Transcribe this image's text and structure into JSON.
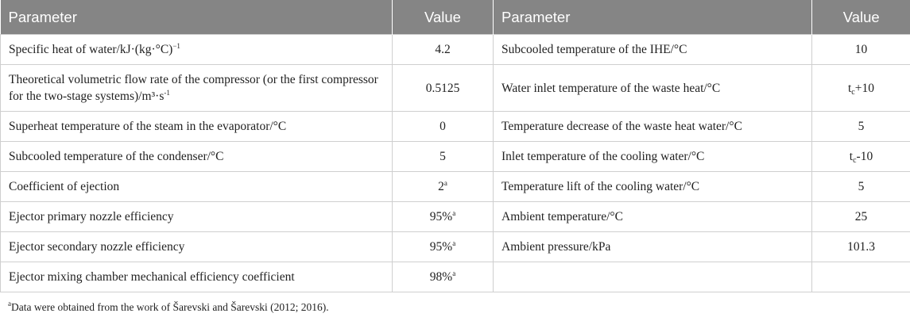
{
  "table": {
    "headers": [
      "Parameter",
      "Value",
      "Parameter",
      "Value"
    ],
    "rows": [
      {
        "p1": "Specific heat of water/kJ·(kg·°C)",
        "p1_sup": "−1",
        "v1": "4.2",
        "p2": "Subcooled temperature of the IHE/°C",
        "v2": "10"
      },
      {
        "p1": "Theoretical volumetric flow rate of the compressor (or the first compressor for the two-stage systems)/m³·s",
        "p1_sup": "-1",
        "v1": "0.5125",
        "p2": "Water inlet temperature of the waste heat/°C",
        "v2_main": "t",
        "v2_sub": "c",
        "v2_tail": "+10"
      },
      {
        "p1": "Superheat temperature of the steam in the evaporator/°C",
        "v1": "0",
        "p2": "Temperature decrease of the waste heat water/°C",
        "v2": "5"
      },
      {
        "p1": "Subcooled temperature of the condenser/°C",
        "v1": "5",
        "p2": "Inlet temperature of the cooling water/°C",
        "v2_main": "t",
        "v2_sub": "c",
        "v2_tail": "-10"
      },
      {
        "p1": "Coefficient of ejection",
        "v1": "2",
        "v1_sup": "a",
        "p2": "Temperature lift of the cooling water/°C",
        "v2": "5"
      },
      {
        "p1": "Ejector primary nozzle efficiency",
        "v1": "95%",
        "v1_sup": "a",
        "p2": "Ambient temperature/°C",
        "v2": "25"
      },
      {
        "p1": "Ejector secondary nozzle efficiency",
        "v1": "95%",
        "v1_sup": "a",
        "p2": "Ambient pressure/kPa",
        "v2": "101.3"
      },
      {
        "p1": "Ejector mixing chamber mechanical efficiency coefficient",
        "v1": "98%",
        "v1_sup": "a",
        "p2": "",
        "v2": ""
      }
    ]
  },
  "footnote": {
    "mark": "a",
    "text": "Data were obtained from the work of Šarevski and Šarevski (2012; 2016)."
  }
}
